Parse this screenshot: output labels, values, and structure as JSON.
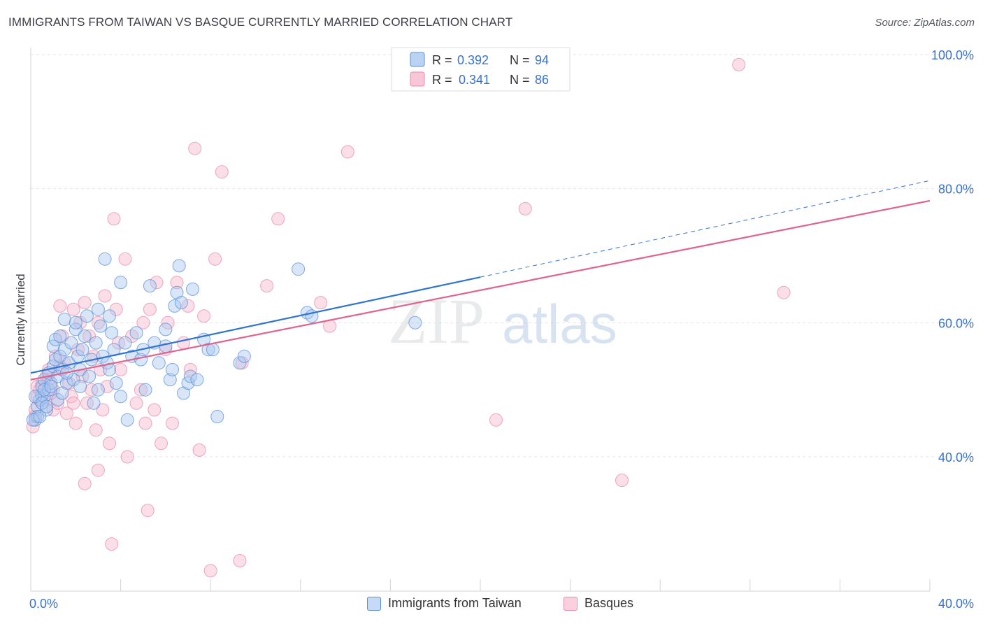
{
  "title": "IMMIGRANTS FROM TAIWAN VS BASQUE CURRENTLY MARRIED CORRELATION CHART",
  "source": "Source: ZipAtlas.com",
  "watermark": {
    "zip": "ZIP",
    "atlas": "atlas"
  },
  "colors": {
    "blue_fill": "#a9c8f0",
    "blue_stroke": "#5a8fd8",
    "blue_line": "#2f74d0",
    "pink_fill": "#f6b8cd",
    "pink_stroke": "#e88aab",
    "pink_line": "#e2628e",
    "grid": "#e3e6ea",
    "axis_label": "#3a72c8"
  },
  "chart_data": {
    "type": "scatter",
    "title": "IMMIGRANTS FROM TAIWAN VS BASQUE CURRENTLY MARRIED CORRELATION CHART",
    "xlabel": "",
    "ylabel": "Currently Married",
    "xlim": [
      0,
      40
    ],
    "ylim": [
      20,
      100
    ],
    "x_tick_labels": [
      "0.0%",
      "40.0%"
    ],
    "y_ticks": [
      40,
      60,
      80,
      100
    ],
    "y_tick_labels": [
      "40.0%",
      "60.0%",
      "80.0%",
      "100.0%"
    ],
    "legend_position": "top-center",
    "series": [
      {
        "name": "Immigrants from Taiwan",
        "legend_r_label": "R = ",
        "legend_r_value": "0.392",
        "legend_n_label": "N = ",
        "legend_n_value": "94",
        "color": "#a9c8f0",
        "trend": {
          "x0": 0,
          "y0": 52.5,
          "x1": 20,
          "y1": 66.8,
          "dashed_to_x": 40,
          "dashed_to_y": 81.2
        },
        "points": [
          [
            0.2,
            45.5
          ],
          [
            0.3,
            46
          ],
          [
            0.3,
            47.5
          ],
          [
            0.4,
            48.5
          ],
          [
            0.5,
            49.2
          ],
          [
            0.5,
            50.5
          ],
          [
            0.6,
            49
          ],
          [
            0.6,
            51.5
          ],
          [
            0.7,
            47
          ],
          [
            0.8,
            50
          ],
          [
            0.8,
            52.5
          ],
          [
            0.9,
            51
          ],
          [
            1,
            53.5
          ],
          [
            1,
            56.5
          ],
          [
            1.1,
            57.5
          ],
          [
            1.1,
            54.5
          ],
          [
            1.2,
            52
          ],
          [
            1.3,
            55
          ],
          [
            1.3,
            58
          ],
          [
            1.4,
            53
          ],
          [
            1.5,
            60.5
          ],
          [
            1.5,
            56
          ],
          [
            1.6,
            51
          ],
          [
            1.7,
            54
          ],
          [
            1.8,
            57
          ],
          [
            1.9,
            51.5
          ],
          [
            2,
            59
          ],
          [
            2,
            60
          ],
          [
            2.1,
            55
          ],
          [
            2.2,
            53
          ],
          [
            2.3,
            56
          ],
          [
            2.4,
            58
          ],
          [
            2.5,
            61
          ],
          [
            2.6,
            52
          ],
          [
            2.7,
            54.5
          ],
          [
            2.8,
            48
          ],
          [
            2.9,
            57
          ],
          [
            3,
            50
          ],
          [
            3,
            62
          ],
          [
            3.1,
            59.5
          ],
          [
            3.2,
            55
          ],
          [
            3.3,
            69.5
          ],
          [
            3.4,
            54
          ],
          [
            3.5,
            61
          ],
          [
            3.6,
            58.5
          ],
          [
            3.7,
            56
          ],
          [
            3.8,
            51
          ],
          [
            4,
            66
          ],
          [
            4,
            49
          ],
          [
            4.2,
            57
          ],
          [
            4.3,
            45.5
          ],
          [
            4.5,
            55
          ],
          [
            4.7,
            58.5
          ],
          [
            4.9,
            54.5
          ],
          [
            5,
            56
          ],
          [
            5.1,
            50
          ],
          [
            5.3,
            65.5
          ],
          [
            5.5,
            57
          ],
          [
            5.7,
            54
          ],
          [
            6,
            56.5
          ],
          [
            6,
            59
          ],
          [
            6.2,
            51.5
          ],
          [
            6.4,
            62.5
          ],
          [
            6.5,
            64.5
          ],
          [
            6.6,
            68.5
          ],
          [
            6.7,
            63
          ],
          [
            6.8,
            49.5
          ],
          [
            7,
            51
          ],
          [
            7.1,
            52
          ],
          [
            7.2,
            65
          ],
          [
            7.4,
            51.5
          ],
          [
            7.7,
            57.5
          ],
          [
            7.9,
            56
          ],
          [
            8.1,
            56
          ],
          [
            8.3,
            46
          ],
          [
            9.3,
            54
          ],
          [
            9.5,
            55
          ],
          [
            11.9,
            68
          ],
          [
            12.3,
            61.5
          ],
          [
            12.5,
            61
          ],
          [
            17.1,
            60
          ],
          [
            0.1,
            45.5
          ],
          [
            0.2,
            49
          ],
          [
            0.4,
            46
          ],
          [
            0.5,
            48
          ],
          [
            0.6,
            50
          ],
          [
            0.7,
            47.5
          ],
          [
            0.9,
            50.5
          ],
          [
            1.2,
            48.5
          ],
          [
            1.4,
            49.5
          ],
          [
            1.6,
            52.5
          ],
          [
            2.2,
            50.5
          ],
          [
            3.5,
            53
          ],
          [
            6.3,
            53
          ]
        ]
      },
      {
        "name": "Basques",
        "legend_r_label": "R = ",
        "legend_r_value": "0.341",
        "legend_n_label": "N = ",
        "legend_n_value": "86",
        "color": "#f6b8cd",
        "trend": {
          "x0": 0,
          "y0": 51.5,
          "x1": 40,
          "y1": 78.2
        },
        "points": [
          [
            0.1,
            44.5
          ],
          [
            0.2,
            47
          ],
          [
            0.3,
            49
          ],
          [
            0.4,
            50
          ],
          [
            0.5,
            51
          ],
          [
            0.6,
            48.5
          ],
          [
            0.7,
            52
          ],
          [
            0.8,
            53
          ],
          [
            0.9,
            49.5
          ],
          [
            1,
            47
          ],
          [
            1.1,
            55
          ],
          [
            1.2,
            48
          ],
          [
            1.3,
            62.5
          ],
          [
            1.4,
            58
          ],
          [
            1.5,
            54
          ],
          [
            1.6,
            46.5
          ],
          [
            1.7,
            51
          ],
          [
            1.8,
            49
          ],
          [
            1.9,
            62
          ],
          [
            2,
            45
          ],
          [
            2.1,
            56
          ],
          [
            2.2,
            60
          ],
          [
            2.3,
            52
          ],
          [
            2.4,
            63
          ],
          [
            2.5,
            48
          ],
          [
            2.6,
            58
          ],
          [
            2.7,
            50
          ],
          [
            2.8,
            55
          ],
          [
            2.9,
            44
          ],
          [
            3,
            60
          ],
          [
            3.1,
            53
          ],
          [
            3.2,
            47
          ],
          [
            3.3,
            64
          ],
          [
            3.4,
            50.5
          ],
          [
            3.5,
            42
          ],
          [
            3.6,
            27
          ],
          [
            3.7,
            75.5
          ],
          [
            3.8,
            62
          ],
          [
            3.9,
            57
          ],
          [
            4,
            53
          ],
          [
            4.2,
            69.5
          ],
          [
            4.3,
            40
          ],
          [
            4.5,
            58
          ],
          [
            4.7,
            48
          ],
          [
            4.9,
            50
          ],
          [
            5,
            60
          ],
          [
            5.1,
            45
          ],
          [
            5.2,
            32
          ],
          [
            5.3,
            62
          ],
          [
            5.5,
            47
          ],
          [
            5.6,
            66
          ],
          [
            5.8,
            42
          ],
          [
            6,
            56
          ],
          [
            6.1,
            60
          ],
          [
            6.3,
            45
          ],
          [
            6.5,
            66
          ],
          [
            6.8,
            57
          ],
          [
            7,
            62.5
          ],
          [
            7.1,
            53
          ],
          [
            7.3,
            86
          ],
          [
            7.5,
            41
          ],
          [
            7.7,
            61
          ],
          [
            8,
            23
          ],
          [
            8.2,
            69.5
          ],
          [
            8.5,
            82.5
          ],
          [
            9.3,
            24.5
          ],
          [
            9.4,
            54
          ],
          [
            10.5,
            65.5
          ],
          [
            11,
            75.5
          ],
          [
            12.9,
            63
          ],
          [
            13.3,
            59.5
          ],
          [
            14.1,
            85.5
          ],
          [
            20.7,
            45.5
          ],
          [
            22,
            77
          ],
          [
            26.3,
            36.5
          ],
          [
            31.5,
            98.5
          ],
          [
            33.5,
            64.5
          ],
          [
            0.3,
            50.5
          ],
          [
            0.5,
            48
          ],
          [
            0.8,
            51.5
          ],
          [
            1.3,
            53.5
          ],
          [
            1.9,
            48
          ],
          [
            2.4,
            36
          ],
          [
            3,
            38
          ],
          [
            0.2,
            46
          ],
          [
            1,
            50
          ]
        ]
      }
    ]
  }
}
